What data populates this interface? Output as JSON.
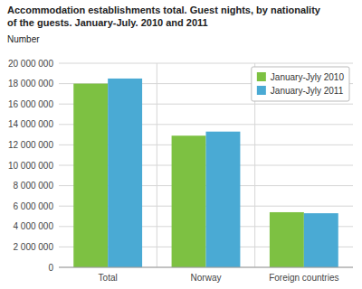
{
  "chart_data": {
    "type": "bar",
    "title": "Accommodation establishments total. Guest nights, by nationality",
    "subtitle": "of the guests. January-July. 2010 and 2011",
    "y_label": "Number",
    "categories": [
      "Total",
      "Norway",
      "Foreign countries"
    ],
    "series": [
      {
        "name": "January-Jyly 2010",
        "color": "#7DC142",
        "values": [
          18000000,
          12900000,
          5400000
        ]
      },
      {
        "name": "January-Jyly 2011",
        "color": "#4AAAD4",
        "values": [
          18500000,
          13300000,
          5300000
        ]
      }
    ],
    "ylim": [
      0,
      20000000
    ],
    "yticks": [
      0,
      {
        "value": 2000000,
        "label": "2 000 000"
      },
      {
        "value": 4000000,
        "label": "4 000 000"
      },
      {
        "value": 6000000,
        "label": "6 000 000"
      },
      {
        "value": 8000000,
        "label": "8 000 000"
      },
      {
        "value": 10000000,
        "label": "10 000 000"
      },
      {
        "value": 12000000,
        "label": "12 000 000"
      },
      {
        "value": 14000000,
        "label": "14 000 000"
      },
      {
        "value": 16000000,
        "label": "16 000 000"
      },
      {
        "value": 18000000,
        "label": "18 000 000"
      },
      {
        "value": 20000000,
        "label": "20 000 000"
      }
    ],
    "grid": true,
    "legend": "upper right"
  }
}
